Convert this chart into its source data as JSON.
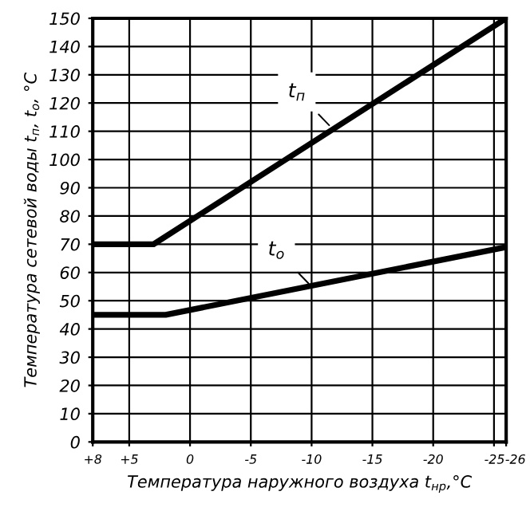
{
  "chart_data": {
    "type": "line",
    "xlabel": "Температура наружного воздуха t$_{нр}$,°С",
    "ylabel": "Температура сетевой воды t$_{п}$, t$_{о}$, °С",
    "series": [
      {
        "x": [
          8,
          3,
          -26
        ],
        "values": [
          70,
          70,
          150
        ],
        "color": "#000000"
      },
      {
        "x": [
          8,
          2,
          -26
        ],
        "values": [
          45,
          45,
          69
        ],
        "color": "#000000"
      }
    ],
    "annotations": [
      {
        "text": "t$_{п}$",
        "x": -11.7,
        "y": 111
      },
      {
        "text": "t$_{о}$",
        "x": -10,
        "y": 55
      }
    ],
    "xlim": [
      8,
      -26
    ],
    "xticks": [
      {
        "value": 8,
        "label": "+8"
      },
      {
        "value": 5,
        "label": "+5"
      },
      0,
      -5,
      -10,
      -15,
      -20,
      -25,
      -26
    ],
    "ylim": [
      0,
      150
    ],
    "yticks": [
      0,
      10,
      20,
      30,
      40,
      50,
      60,
      70,
      80,
      90,
      100,
      110,
      120,
      130,
      140,
      150
    ],
    "grid": true,
    "marker": "none",
    "line_style": "solid"
  }
}
